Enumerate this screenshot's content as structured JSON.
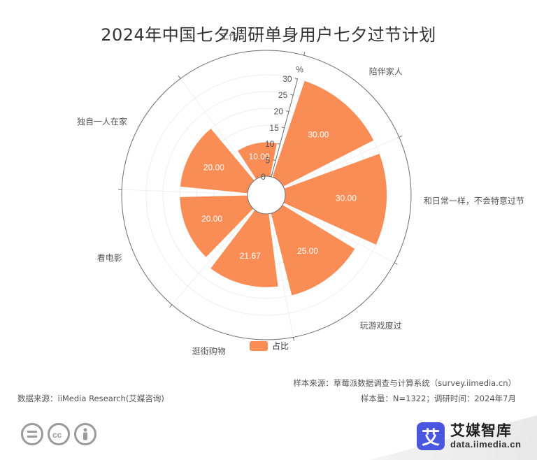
{
  "title": "2024年中国七夕调研单身用户七夕过节计划",
  "chart_data": {
    "type": "polar-bar",
    "unit_label": "%",
    "categories": [
      "陪伴家人",
      "和日常一样，不会特意过节",
      "玩游戏度过",
      "逛街购物",
      "看电影",
      "独自一人在家",
      "工作"
    ],
    "series": [
      {
        "name": "占比",
        "values": [
          30.0,
          30.0,
          25.0,
          21.67,
          20.0,
          20.0,
          10.0
        ]
      }
    ],
    "value_labels": [
      "30.00",
      "30.00",
      "25.00",
      "21.67",
      "20.00",
      "20.00",
      "10.00"
    ],
    "radial_axis": {
      "min": 0,
      "max": 30,
      "ticks": [
        "0",
        "5",
        "10",
        "15",
        "20",
        "25",
        "30"
      ]
    },
    "color": "#fa8d56",
    "legend_position": "bottom-center"
  },
  "legend": {
    "label": "占比",
    "color": "#fa8d56"
  },
  "footer": {
    "sample_source": "样本来源：草莓派数据调查与计算系统（survey.iimedia.cn）",
    "sample_info": "样本量：N=1322；调研时间：2024年7月",
    "data_source": "数据来源：iiMedia Research(艾媒咨询)"
  },
  "license_icons": [
    "equals-icon",
    "cc-icon",
    "person-icon"
  ],
  "brand": {
    "logo_char": "艾",
    "name": "艾媒智库",
    "url": "data.iimedia.cn",
    "logo_color": "#4a55e0"
  }
}
